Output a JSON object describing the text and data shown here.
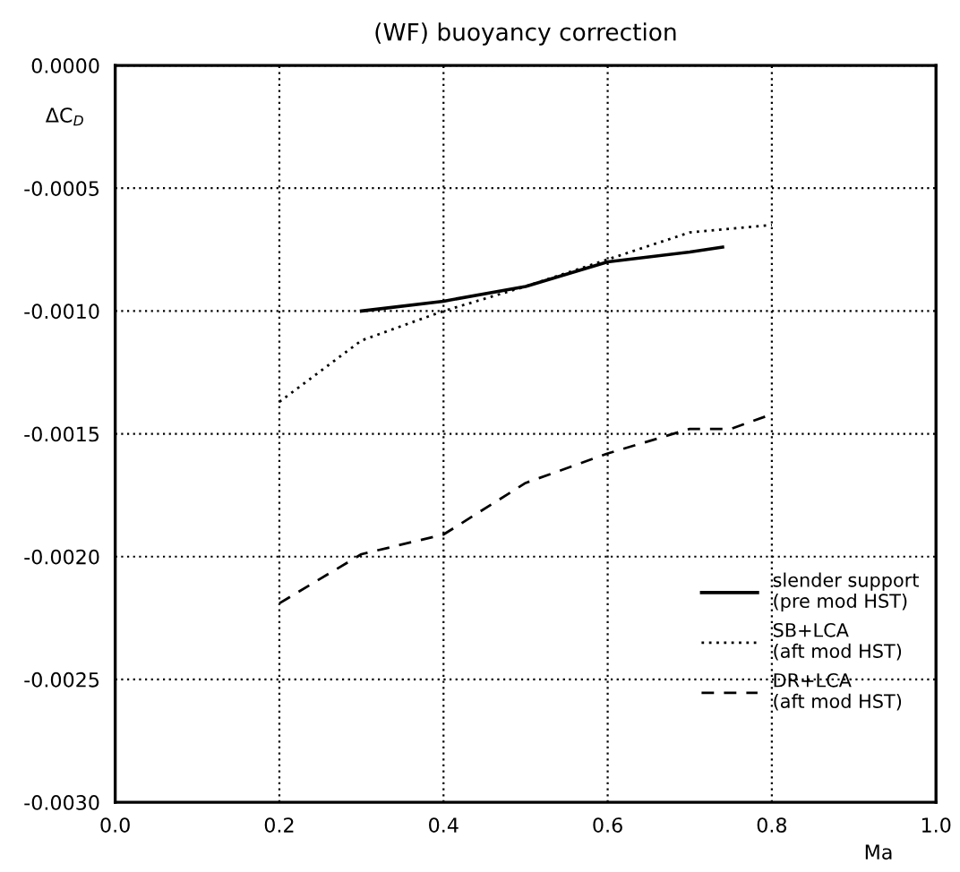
{
  "chart_data": {
    "type": "line",
    "title": "(WF) buoyancy correction",
    "xlabel": "Ma",
    "ylabel": "ΔC$_{D}$",
    "xlim": [
      0.0,
      1.0
    ],
    "ylim": [
      -0.003,
      0.0
    ],
    "xticks": [
      {
        "value": 0.0,
        "label": "0.0"
      },
      {
        "value": 0.2,
        "label": "0.2"
      },
      {
        "value": 0.4,
        "label": "0.4"
      },
      {
        "value": 0.6,
        "label": "0.6"
      },
      {
        "value": 0.8,
        "label": "0.8"
      },
      {
        "value": 1.0,
        "label": "1.0"
      }
    ],
    "yticks": [
      {
        "value": 0.0,
        "label": "0.0000"
      },
      {
        "value": -0.0005,
        "label": "-0.0005"
      },
      {
        "value": -0.001,
        "label": "-0.0010"
      },
      {
        "value": -0.0015,
        "label": "-0.0015"
      },
      {
        "value": -0.002,
        "label": "-0.0020"
      },
      {
        "value": -0.0025,
        "label": "-0.0025"
      },
      {
        "value": -0.003,
        "label": "-0.0030"
      }
    ],
    "grid": true,
    "legend": "bottom right",
    "marker": "none",
    "series": [
      {
        "name": "slender support\n(pre mod HST)",
        "color": "#000000",
        "line_style": "solid",
        "x": [
          0.3,
          0.4,
          0.5,
          0.6,
          0.7,
          0.74
        ],
        "values": [
          -0.001,
          -0.00096,
          -0.0009,
          -0.0008,
          -0.00076,
          -0.00074
        ]
      },
      {
        "name": "SB+LCA\n(aft mod HST)",
        "color": "#000000",
        "line_style": "dotted",
        "x": [
          0.2,
          0.3,
          0.4,
          0.5,
          0.6,
          0.7,
          0.8
        ],
        "values": [
          -0.00137,
          -0.00112,
          -0.001,
          -0.0009,
          -0.00079,
          -0.00068,
          -0.00065
        ]
      },
      {
        "name": "DR+LCA\n(aft mod HST)",
        "color": "#000000",
        "line_style": "dashed",
        "x": [
          0.2,
          0.3,
          0.4,
          0.5,
          0.6,
          0.7,
          0.75,
          0.8
        ],
        "values": [
          -0.00219,
          -0.00199,
          -0.00191,
          -0.0017,
          -0.00158,
          -0.00148,
          -0.00148,
          -0.00142
        ]
      }
    ]
  }
}
